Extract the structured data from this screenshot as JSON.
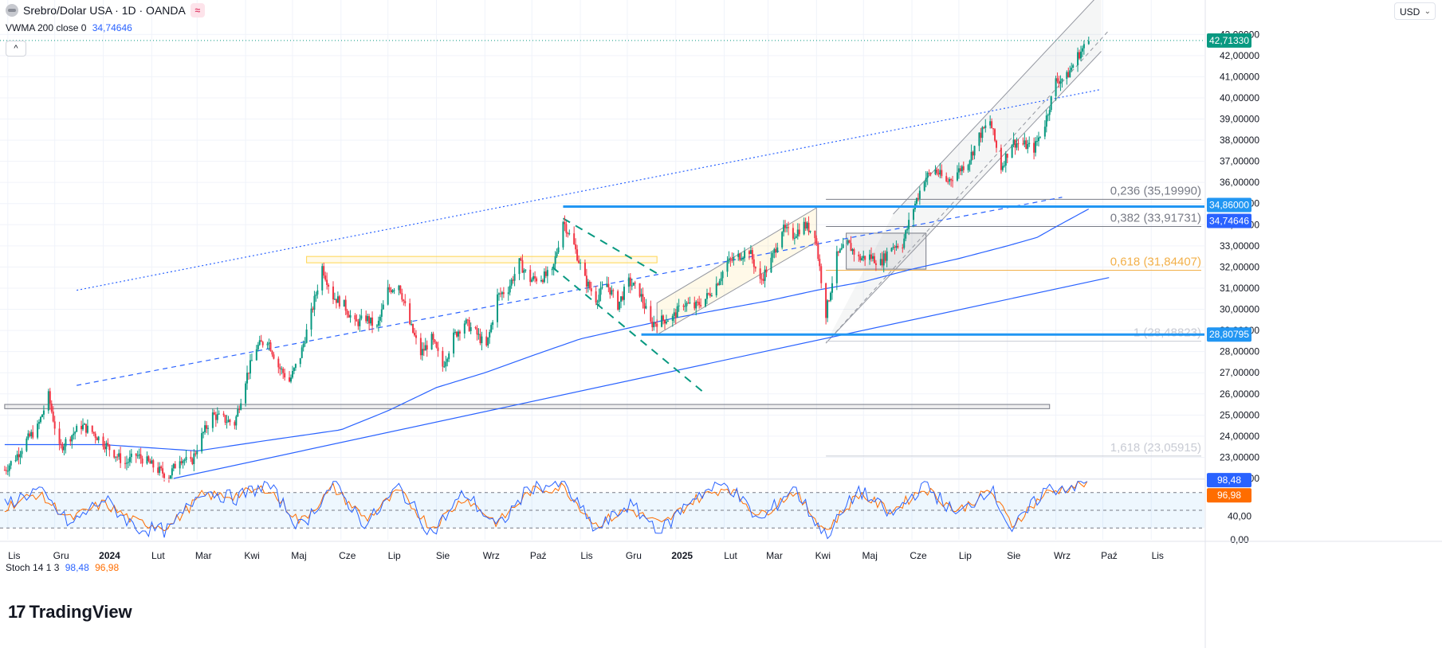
{
  "header": {
    "symbol_title": "Srebro/Dolar USA · 1D · OANDA",
    "mode_badge": "≈",
    "indicator_label": "VWMA 200 close 0",
    "indicator_value": "34,74646",
    "collapse_glyph": "^",
    "currency": "USD",
    "currency_chevron": "⌄"
  },
  "stoch": {
    "label": "Stoch 14 1 3",
    "k_value": "98,48",
    "d_value": "96,98",
    "axis_ticks": [
      "40,00",
      "0,00"
    ],
    "k_badge": "98,48",
    "d_badge": "96,98",
    "levels": [
      80,
      50,
      20
    ]
  },
  "logo": {
    "text": "TradingView",
    "mark": "17"
  },
  "colors": {
    "up": "#089981",
    "down": "#f23645",
    "vwma": "#2962ff",
    "stoch_k": "#2962ff",
    "stoch_d": "#ff6d00",
    "fib_618": "#f2c46d",
    "level_line": "#2196f3",
    "resistance_box": "#ffd54f"
  },
  "chart_data": {
    "type": "candlestick",
    "ylim": [
      22.0,
      43.5
    ],
    "price_ticks": [
      "22,00000",
      "23,00000",
      "24,00000",
      "25,00000",
      "26,00000",
      "27,00000",
      "28,00000",
      "29,00000",
      "30,00000",
      "31,00000",
      "32,00000",
      "33,00000",
      "34,00000",
      "35,00000",
      "36,00000",
      "37,00000",
      "38,00000",
      "39,00000",
      "40,00000",
      "41,00000",
      "42,00000",
      "43,00000"
    ],
    "price_tick_values": [
      22,
      23,
      24,
      25,
      26,
      27,
      28,
      29,
      30,
      31,
      32,
      33,
      34,
      35,
      36,
      37,
      38,
      39,
      40,
      41,
      42,
      43
    ],
    "x_labels": [
      "Lis",
      "Gru",
      "2024",
      "Lut",
      "Mar",
      "Kwi",
      "Maj",
      "Cze",
      "Lip",
      "Sie",
      "Wrz",
      "Paź",
      "Lis",
      "Gru",
      "2025",
      "Lut",
      "Mar",
      "Kwi",
      "Maj",
      "Cze",
      "Lip",
      "Sie",
      "Wrz",
      "Paź",
      "Lis"
    ],
    "bold_x_labels": [
      "2024",
      "2025"
    ],
    "last_price": "42,71330",
    "last_price_value": 42.7133,
    "price_badges": [
      {
        "text": "34,86000",
        "value": 34.86,
        "color": "#2196f3"
      },
      {
        "text": "34,74646",
        "value": 34.74646,
        "color": "#2962ff"
      },
      {
        "text": "28,80795",
        "value": 28.80795,
        "color": "#2196f3"
      }
    ],
    "fib_levels": [
      {
        "label": "0,236 (35,19990)",
        "value": 35.1999,
        "color": "#787b86"
      },
      {
        "label": "0,382 (33,91731)",
        "value": 33.91731,
        "color": "#787b86"
      },
      {
        "label": "0,618 (31,84407)",
        "value": 31.84407,
        "color": "#f2b04a"
      },
      {
        "label": "1 (28,48823)",
        "value": 28.48823,
        "color": "#c8cbd4"
      },
      {
        "label": "1,618 (23,05915)",
        "value": 23.05915,
        "color": "#c8cbd4"
      }
    ],
    "price_path": [
      [
        "2023-10-30",
        22.4
      ],
      [
        "2023-11-06",
        23.0
      ],
      [
        "2023-11-13",
        23.8
      ],
      [
        "2023-11-20",
        24.4
      ],
      [
        "2023-11-27",
        25.9
      ],
      [
        "2023-12-04",
        23.4
      ],
      [
        "2023-12-11",
        24.0
      ],
      [
        "2023-12-18",
        24.5
      ],
      [
        "2023-12-25",
        24.2
      ],
      [
        "2024-01-08",
        23.2
      ],
      [
        "2024-01-15",
        22.7
      ],
      [
        "2024-01-22",
        23.1
      ],
      [
        "2024-01-29",
        22.8
      ],
      [
        "2024-02-05",
        22.4
      ],
      [
        "2024-02-12",
        22.1
      ],
      [
        "2024-02-19",
        23.0
      ],
      [
        "2024-02-26",
        22.7
      ],
      [
        "2024-03-04",
        24.0
      ],
      [
        "2024-03-11",
        25.0
      ],
      [
        "2024-03-18",
        24.8
      ],
      [
        "2024-03-25",
        24.6
      ],
      [
        "2024-04-01",
        26.7
      ],
      [
        "2024-04-08",
        28.2
      ],
      [
        "2024-04-15",
        28.6
      ],
      [
        "2024-04-22",
        27.3
      ],
      [
        "2024-04-29",
        26.6
      ],
      [
        "2024-05-06",
        27.8
      ],
      [
        "2024-05-13",
        29.8
      ],
      [
        "2024-05-20",
        32.0
      ],
      [
        "2024-05-27",
        30.6
      ],
      [
        "2024-06-03",
        30.2
      ],
      [
        "2024-06-10",
        29.3
      ],
      [
        "2024-06-17",
        29.6
      ],
      [
        "2024-06-24",
        29.1
      ],
      [
        "2024-07-01",
        30.9
      ],
      [
        "2024-07-08",
        31.2
      ],
      [
        "2024-07-15",
        29.3
      ],
      [
        "2024-07-22",
        27.9
      ],
      [
        "2024-07-29",
        28.6
      ],
      [
        "2024-08-05",
        27.3
      ],
      [
        "2024-08-12",
        28.7
      ],
      [
        "2024-08-19",
        29.4
      ],
      [
        "2024-08-26",
        28.9
      ],
      [
        "2024-09-02",
        28.2
      ],
      [
        "2024-09-09",
        30.6
      ],
      [
        "2024-09-16",
        31.0
      ],
      [
        "2024-09-23",
        32.2
      ],
      [
        "2024-09-30",
        31.4
      ],
      [
        "2024-10-07",
        31.5
      ],
      [
        "2024-10-14",
        31.7
      ],
      [
        "2024-10-21",
        34.2
      ],
      [
        "2024-10-28",
        33.0
      ],
      [
        "2024-11-04",
        31.4
      ],
      [
        "2024-11-11",
        30.5
      ],
      [
        "2024-11-18",
        31.2
      ],
      [
        "2024-11-25",
        30.2
      ],
      [
        "2024-12-02",
        31.3
      ],
      [
        "2024-12-09",
        30.8
      ],
      [
        "2024-12-16",
        29.3
      ],
      [
        "2024-12-23",
        29.5
      ],
      [
        "2024-12-30",
        29.6
      ],
      [
        "2025-01-06",
        30.3
      ],
      [
        "2025-01-13",
        30.1
      ],
      [
        "2025-01-20",
        30.5
      ],
      [
        "2025-01-27",
        31.2
      ],
      [
        "2025-02-03",
        32.2
      ],
      [
        "2025-02-10",
        32.5
      ],
      [
        "2025-02-17",
        32.8
      ],
      [
        "2025-02-24",
        31.3
      ],
      [
        "2025-03-03",
        32.3
      ],
      [
        "2025-03-10",
        33.8
      ],
      [
        "2025-03-17",
        33.5
      ],
      [
        "2025-03-24",
        34.0
      ],
      [
        "2025-03-31",
        33.6
      ],
      [
        "2025-04-07",
        29.8
      ],
      [
        "2025-04-14",
        32.5
      ],
      [
        "2025-04-21",
        33.1
      ],
      [
        "2025-04-28",
        32.4
      ],
      [
        "2025-05-05",
        32.5
      ],
      [
        "2025-05-12",
        32.2
      ],
      [
        "2025-05-19",
        33.0
      ],
      [
        "2025-05-26",
        33.1
      ],
      [
        "2025-06-02",
        34.8
      ],
      [
        "2025-06-09",
        36.2
      ],
      [
        "2025-06-16",
        36.6
      ],
      [
        "2025-06-23",
        36.0
      ],
      [
        "2025-06-30",
        36.5
      ],
      [
        "2025-07-07",
        37.0
      ],
      [
        "2025-07-14",
        38.2
      ],
      [
        "2025-07-21",
        38.9
      ],
      [
        "2025-07-28",
        36.7
      ],
      [
        "2025-08-04",
        37.9
      ],
      [
        "2025-08-11",
        37.8
      ],
      [
        "2025-08-18",
        37.6
      ],
      [
        "2025-08-25",
        38.8
      ],
      [
        "2025-09-01",
        40.8
      ],
      [
        "2025-09-08",
        41.0
      ],
      [
        "2025-09-15",
        42.0
      ],
      [
        "2025-09-22",
        42.7
      ]
    ],
    "vwma_path": [
      [
        "2023-10-30",
        23.6
      ],
      [
        "2024-01-01",
        23.6
      ],
      [
        "2024-03-01",
        23.3
      ],
      [
        "2024-04-15",
        23.8
      ],
      [
        "2024-06-01",
        24.3
      ],
      [
        "2024-07-01",
        25.2
      ],
      [
        "2024-08-01",
        26.3
      ],
      [
        "2024-09-01",
        27.0
      ],
      [
        "2024-10-01",
        27.8
      ],
      [
        "2024-11-01",
        28.6
      ],
      [
        "2024-12-01",
        29.1
      ],
      [
        "2025-01-01",
        29.6
      ],
      [
        "2025-03-01",
        30.4
      ],
      [
        "2025-04-01",
        30.9
      ],
      [
        "2025-05-01",
        31.3
      ],
      [
        "2025-06-01",
        31.9
      ],
      [
        "2025-07-01",
        32.4
      ],
      [
        "2025-08-01",
        33.0
      ],
      [
        "2025-08-20",
        33.4
      ],
      [
        "2025-09-01",
        33.9
      ],
      [
        "2025-09-22",
        34.74646
      ]
    ],
    "stoch_k_path": [
      [
        "2023-10-30",
        60
      ],
      [
        "2023-11-20",
        85
      ],
      [
        "2023-12-11",
        25
      ],
      [
        "2024-01-01",
        70
      ],
      [
        "2024-01-22",
        20
      ],
      [
        "2024-02-12",
        15
      ],
      [
        "2024-03-04",
        85
      ],
      [
        "2024-03-25",
        70
      ],
      [
        "2024-04-15",
        95
      ],
      [
        "2024-05-06",
        20
      ],
      [
        "2024-05-27",
        95
      ],
      [
        "2024-06-17",
        25
      ],
      [
        "2024-07-08",
        90
      ],
      [
        "2024-07-29",
        10
      ],
      [
        "2024-08-19",
        80
      ],
      [
        "2024-09-09",
        20
      ],
      [
        "2024-09-30",
        90
      ],
      [
        "2024-10-21",
        95
      ],
      [
        "2024-11-11",
        15
      ],
      [
        "2024-12-02",
        60
      ],
      [
        "2024-12-23",
        15
      ],
      [
        "2025-01-13",
        75
      ],
      [
        "2025-02-03",
        95
      ],
      [
        "2025-02-24",
        30
      ],
      [
        "2025-03-17",
        90
      ],
      [
        "2025-04-07",
        5
      ],
      [
        "2025-04-28",
        85
      ],
      [
        "2025-05-19",
        40
      ],
      [
        "2025-06-09",
        95
      ],
      [
        "2025-06-30",
        40
      ],
      [
        "2025-07-21",
        90
      ],
      [
        "2025-08-04",
        15
      ],
      [
        "2025-08-25",
        85
      ],
      [
        "2025-09-08",
        90
      ],
      [
        "2025-09-22",
        98.48
      ]
    ],
    "stoch_d_path": [
      [
        "2023-10-30",
        55
      ],
      [
        "2023-11-20",
        78
      ],
      [
        "2023-12-11",
        35
      ],
      [
        "2024-01-01",
        62
      ],
      [
        "2024-01-22",
        30
      ],
      [
        "2024-02-12",
        22
      ],
      [
        "2024-03-04",
        75
      ],
      [
        "2024-03-25",
        75
      ],
      [
        "2024-04-15",
        88
      ],
      [
        "2024-05-06",
        30
      ],
      [
        "2024-05-27",
        88
      ],
      [
        "2024-06-17",
        35
      ],
      [
        "2024-07-08",
        82
      ],
      [
        "2024-07-29",
        20
      ],
      [
        "2024-08-19",
        72
      ],
      [
        "2024-09-09",
        28
      ],
      [
        "2024-09-30",
        82
      ],
      [
        "2024-10-21",
        90
      ],
      [
        "2024-11-11",
        25
      ],
      [
        "2024-12-02",
        52
      ],
      [
        "2024-12-23",
        25
      ],
      [
        "2025-01-13",
        68
      ],
      [
        "2025-02-03",
        90
      ],
      [
        "2025-02-24",
        40
      ],
      [
        "2025-03-17",
        82
      ],
      [
        "2025-04-07",
        15
      ],
      [
        "2025-04-28",
        78
      ],
      [
        "2025-05-19",
        48
      ],
      [
        "2025-06-09",
        88
      ],
      [
        "2025-06-30",
        48
      ],
      [
        "2025-07-21",
        84
      ],
      [
        "2025-08-04",
        25
      ],
      [
        "2025-08-25",
        78
      ],
      [
        "2025-09-08",
        88
      ],
      [
        "2025-09-22",
        96.98
      ]
    ],
    "trendlines": [
      {
        "name": "dotted-upper-trendline",
        "from": [
          "2023-12-15",
          30.9
        ],
        "to": [
          "2025-09-30",
          40.4
        ],
        "style": "dotted"
      },
      {
        "name": "main-support-trendline",
        "from": [
          "2024-02-15",
          22.0
        ],
        "to": [
          "2025-10-05",
          31.5
        ],
        "style": "solid"
      },
      {
        "name": "dashed-mid-trendline",
        "from": [
          "2023-12-15",
          26.4
        ],
        "to": [
          "2025-09-05",
          35.3
        ],
        "style": "dashed"
      },
      {
        "name": "green-falling-channel-top",
        "from": [
          "2024-10-21",
          34.3
        ],
        "to": [
          "2024-12-20",
          31.7
        ],
        "style": "green-dashed"
      },
      {
        "name": "green-falling-channel-bottom",
        "from": [
          "2024-10-14",
          32.0
        ],
        "to": [
          "2025-01-20",
          26.0
        ],
        "style": "green-dashed"
      }
    ],
    "horizontal_levels": [
      {
        "name": "resistance-34-86",
        "value": 34.86,
        "from": "2024-10-21",
        "to": "2025-09-30"
      },
      {
        "name": "support-28-81",
        "value": 28.80795,
        "from": "2024-12-10",
        "to": "2025-09-30"
      }
    ],
    "zones": [
      {
        "name": "resistance-zone-32-4",
        "from": "2024-05-10",
        "to": "2024-12-20",
        "low": 32.2,
        "high": 32.5,
        "color": "#ffd54f"
      },
      {
        "name": "range-box-25",
        "from": "2023-10-30",
        "to": "2025-08-28",
        "low": 25.3,
        "high": 25.5,
        "color": "#787b86"
      },
      {
        "name": "consolidation-box",
        "from": "2025-04-20",
        "to": "2025-06-10",
        "low": 31.9,
        "high": 33.6,
        "color": "#787b86"
      }
    ],
    "rising_channel": {
      "lower": {
        "from": [
          "2025-04-07",
          28.4
        ],
        "to": [
          "2025-09-30",
          42.2
        ]
      },
      "upper": {
        "from": [
          "2025-05-20",
          34.5
        ],
        "to": [
          "2025-09-30",
          45.0
        ]
      },
      "mid": {
        "from": [
          "2025-04-07",
          28.4
        ],
        "to": [
          "2025-10-05",
          43.2
        ]
      }
    }
  }
}
